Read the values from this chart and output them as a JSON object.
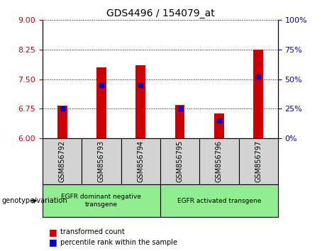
{
  "title": "GDS4496 / 154079_at",
  "samples": [
    "GSM856792",
    "GSM856793",
    "GSM856794",
    "GSM856795",
    "GSM856796",
    "GSM856797"
  ],
  "transformed_count": [
    6.83,
    7.8,
    7.85,
    6.85,
    6.62,
    8.25
  ],
  "percentile_rank": [
    25,
    45,
    45,
    25,
    15,
    52
  ],
  "ylim_left": [
    6,
    9
  ],
  "ylim_right": [
    0,
    100
  ],
  "yticks_left": [
    6,
    6.75,
    7.5,
    8.25,
    9
  ],
  "yticks_right": [
    0,
    25,
    50,
    75,
    100
  ],
  "bar_color": "#cc0000",
  "percentile_color": "#0000cc",
  "bar_width": 0.25,
  "group1_label": "EGFR dominant negative\ntransgene",
  "group2_label": "EGFR activated transgene",
  "group_color": "#90ee90",
  "sample_box_color": "#d3d3d3",
  "xlabel_genotype": "genotype/variation",
  "legend_items": [
    {
      "label": "transformed count",
      "color": "#cc0000"
    },
    {
      "label": "percentile rank within the sample",
      "color": "#0000cc"
    }
  ],
  "axis_label_color_left": "#cc0000",
  "axis_label_color_right": "#0000cc",
  "bg_color": "#ffffff",
  "plot_bg_color": "#ffffff"
}
